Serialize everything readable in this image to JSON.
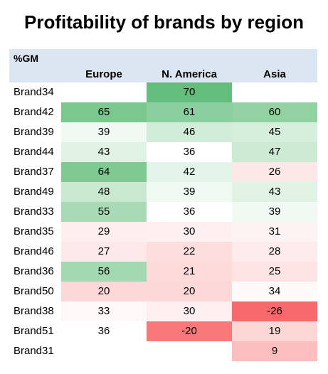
{
  "title": "Profitability of brands by region",
  "chart_data": {
    "type": "heatmap",
    "title": "Profitability of brands by region",
    "corner_label": "%GM",
    "columns": [
      "Europe",
      "N. America",
      "Asia"
    ],
    "rows": [
      {
        "label": "Brand34",
        "values": [
          null,
          70,
          null
        ]
      },
      {
        "label": "Brand42",
        "values": [
          65,
          61,
          60
        ]
      },
      {
        "label": "Brand39",
        "values": [
          39,
          46,
          45
        ]
      },
      {
        "label": "Brand44",
        "values": [
          43,
          36,
          47
        ]
      },
      {
        "label": "Brand37",
        "values": [
          64,
          42,
          26
        ]
      },
      {
        "label": "Brand49",
        "values": [
          48,
          39,
          43
        ]
      },
      {
        "label": "Brand33",
        "values": [
          55,
          36,
          39
        ]
      },
      {
        "label": "Brand35",
        "values": [
          29,
          30,
          31
        ]
      },
      {
        "label": "Brand46",
        "values": [
          27,
          22,
          28
        ]
      },
      {
        "label": "Brand36",
        "values": [
          56,
          21,
          25
        ]
      },
      {
        "label": "Brand50",
        "values": [
          20,
          20,
          34
        ]
      },
      {
        "label": "Brand38",
        "values": [
          33,
          30,
          -26
        ]
      },
      {
        "label": "Brand51",
        "values": [
          36,
          -20,
          19
        ]
      },
      {
        "label": "Brand31",
        "values": [
          null,
          null,
          9
        ]
      }
    ],
    "color_scale": {
      "low_color": "#f8696b",
      "mid_color": "#ffffff",
      "high_color": "#63be7b",
      "low_value": -26,
      "mid_value": 36,
      "high_value": 70
    },
    "header_background": "#dce6f2"
  }
}
